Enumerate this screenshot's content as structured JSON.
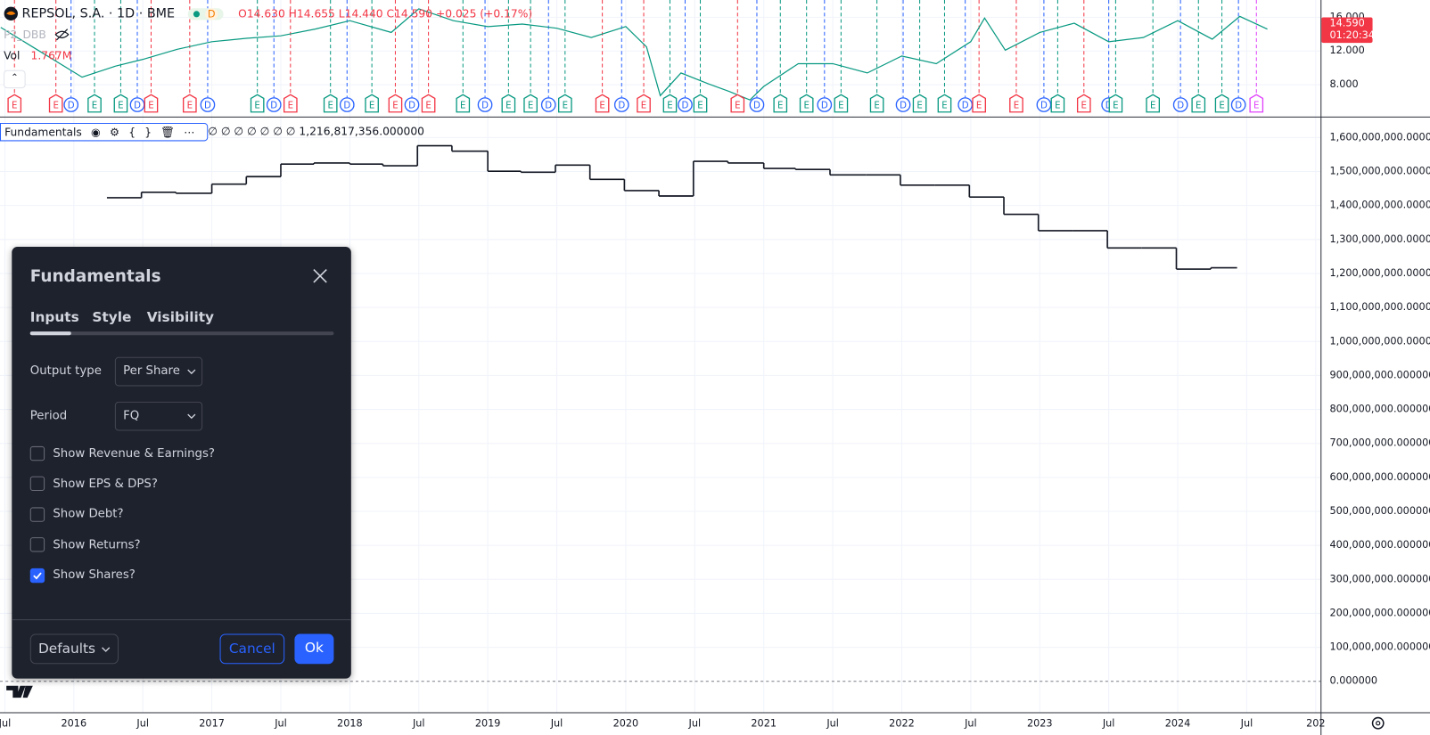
{
  "header": {
    "symbol": "REPSOL, S.A. · 1D · BME",
    "badge": "D",
    "open": "O14.630",
    "high": "H14.655",
    "low": "L14.440",
    "close": "C14.590",
    "change": "+0.025 (+0.17%)",
    "indicator": "P2_DBB",
    "volume_label": "Vol",
    "volume_value": "1.767M"
  },
  "indicator_legend": {
    "name": "Fundamentals",
    "values_text": "∅ ∅ ∅ ∅ ∅ ∅ ∅ 1,216,817,356.000000"
  },
  "chart_data": [
    {
      "type": "line",
      "color": "#089981",
      "x": [
        2015.47,
        2015.7,
        2016.06,
        2016.3,
        2016.5,
        2016.75,
        2017,
        2017.25,
        2017.5,
        2017.75,
        2018,
        2018.3,
        2018.5,
        2018.75,
        2019,
        2019.25,
        2019.5,
        2019.75,
        2020,
        2020.15,
        2020.25,
        2020.4,
        2020.6,
        2020.75,
        2020.9,
        2021,
        2021.25,
        2021.5,
        2021.75,
        2022,
        2022.25,
        2022.5,
        2022.6,
        2022.75,
        2023,
        2023.25,
        2023.5,
        2023.75,
        2024,
        2024.25,
        2024.45,
        2024.65
      ],
      "values": [
        14.8,
        12.5,
        8.9,
        10.2,
        11,
        12.2,
        13.1,
        13.5,
        13.8,
        14.6,
        15.6,
        14.2,
        17,
        15.6,
        14.9,
        15.2,
        14.7,
        13.6,
        14.9,
        12.5,
        6.7,
        9.4,
        8.1,
        7.2,
        6.2,
        7.8,
        10.5,
        10.5,
        9.4,
        11.4,
        10.5,
        13.1,
        15.9,
        12.1,
        14.2,
        15.3,
        13.1,
        13.6,
        15.6,
        13.4,
        16.1,
        14.59
      ],
      "xlim": [
        2015.465,
        2025.035
      ],
      "ylim": [
        4.22,
        18.05
      ],
      "yticks": [
        {
          "value": 8,
          "label": "8.000"
        },
        {
          "value": 12,
          "label": "12.000"
        },
        {
          "value": 16,
          "label": "16.000"
        }
      ],
      "price_tag": {
        "value": 14.59,
        "label": "14.590"
      },
      "countdown": "01:20:34",
      "tag_color": "#f23645",
      "events": {
        "x": [
          2015.57,
          2015.87,
          2015.98,
          2016.15,
          2016.34,
          2016.46,
          2016.56,
          2016.84,
          2016.97,
          2017.33,
          2017.45,
          2017.57,
          2017.86,
          2017.98,
          2018.16,
          2018.33,
          2018.45,
          2018.57,
          2018.82,
          2018.98,
          2019.15,
          2019.31,
          2019.44,
          2019.56,
          2019.83,
          2019.97,
          2020.13,
          2020.32,
          2020.43,
          2020.54,
          2020.81,
          2020.95,
          2021.12,
          2021.31,
          2021.44,
          2021.56,
          2021.82,
          2022.01,
          2022.13,
          2022.31,
          2022.46,
          2022.56,
          2022.83,
          2023.03,
          2023.13,
          2023.32,
          2023.5,
          2023.55,
          2023.82,
          2024.02,
          2024.15,
          2024.32,
          2024.44,
          2024.57
        ],
        "labels": [
          "E",
          "E",
          "D",
          "E",
          "E",
          "D",
          "E",
          "E",
          "D",
          "E",
          "D",
          "E",
          "E",
          "D",
          "E",
          "E",
          "D",
          "E",
          "E",
          "D",
          "E",
          "E",
          "D",
          "E",
          "E",
          "D",
          "E",
          "E",
          "D",
          "E",
          "E",
          "D",
          "E",
          "E",
          "D",
          "E",
          "E",
          "D",
          "E",
          "E",
          "D",
          "E",
          "E",
          "D",
          "E",
          "E",
          "D",
          "E",
          "E",
          "D",
          "E",
          "E",
          "D",
          "E"
        ],
        "colors": [
          "#f23645",
          "#f23645",
          "#2962ff",
          "#089981",
          "#089981",
          "#2962ff",
          "#f23645",
          "#f23645",
          "#2962ff",
          "#089981",
          "#2962ff",
          "#f23645",
          "#089981",
          "#2962ff",
          "#089981",
          "#f23645",
          "#2962ff",
          "#f23645",
          "#089981",
          "#2962ff",
          "#089981",
          "#089981",
          "#2962ff",
          "#089981",
          "#f23645",
          "#2962ff",
          "#f23645",
          "#089981",
          "#2962ff",
          "#089981",
          "#f23645",
          "#2962ff",
          "#089981",
          "#089981",
          "#2962ff",
          "#089981",
          "#089981",
          "#2962ff",
          "#089981",
          "#089981",
          "#2962ff",
          "#f23645",
          "#f23645",
          "#2962ff",
          "#089981",
          "#f23645",
          "#2962ff",
          "#089981",
          "#089981",
          "#2962ff",
          "#089981",
          "#089981",
          "#2962ff",
          "#e040fb"
        ]
      }
    },
    {
      "type": "step",
      "color": "#131722",
      "grid": true,
      "x": [
        2016.24,
        2016.49,
        2016.74,
        2017.0,
        2017.25,
        2017.5,
        2017.74,
        2018.0,
        2018.24,
        2018.49,
        2018.74,
        2019.0,
        2019.24,
        2019.49,
        2019.74,
        2019.99,
        2020.24,
        2020.49,
        2020.74,
        2021.0,
        2021.23,
        2021.48,
        2021.74,
        2021.99,
        2022.24,
        2022.49,
        2022.74,
        2022.99,
        2023.24,
        2023.49,
        2023.74,
        2023.99,
        2024.24
      ],
      "values": [
        1423000000,
        1439000000,
        1436000000,
        1463000000,
        1485000000,
        1522000000,
        1525000000,
        1522000000,
        1517000000,
        1576000000,
        1560000000,
        1501000000,
        1498000000,
        1519000000,
        1477000000,
        1444000000,
        1428000000,
        1530000000,
        1525000000,
        1509000000,
        1506000000,
        1490000000,
        1490000000,
        1460000000,
        1460000000,
        1425000000,
        1374000000,
        1326000000,
        1326000000,
        1275000000,
        1275000000,
        1213000000,
        1216817356
      ],
      "xlim": [
        2015.465,
        2025.035
      ],
      "ylim": [
        -91000000,
        1659000000
      ],
      "xticks": [
        {
          "value": 2015.5,
          "label": "Jul"
        },
        2016,
        {
          "value": 2016.5,
          "label": "Jul"
        },
        2017,
        {
          "value": 2017.5,
          "label": "Jul"
        },
        2018,
        {
          "value": 2018.5,
          "label": "Jul"
        },
        2019,
        {
          "value": 2019.5,
          "label": "Jul"
        },
        2020,
        {
          "value": 2020.5,
          "label": "Jul"
        },
        2021,
        {
          "value": 2021.5,
          "label": "Jul"
        },
        2022,
        {
          "value": 2022.5,
          "label": "Jul"
        },
        2023,
        {
          "value": 2023.5,
          "label": "Jul"
        },
        2024,
        {
          "value": 2024.5,
          "label": "Jul"
        },
        {
          "value": 2025,
          "label": "202"
        }
      ],
      "yticks": [
        {
          "value": 0,
          "label": "0.000000"
        },
        {
          "value": 100000000,
          "label": "100,000,000.000000"
        },
        {
          "value": 200000000,
          "label": "200,000,000.000000"
        },
        {
          "value": 300000000,
          "label": "300,000,000.000000"
        },
        {
          "value": 400000000,
          "label": "400,000,000.000000"
        },
        {
          "value": 500000000,
          "label": "500,000,000.000000"
        },
        {
          "value": 600000000,
          "label": "600,000,000.000000"
        },
        {
          "value": 700000000,
          "label": "700,000,000.000000"
        },
        {
          "value": 800000000,
          "label": "800,000,000.000000"
        },
        {
          "value": 900000000,
          "label": "900,000,000.000000"
        },
        {
          "value": 1000000000,
          "label": "1,000,000,000.000000"
        },
        {
          "value": 1100000000,
          "label": "1,100,000,000.000000"
        },
        {
          "value": 1200000000,
          "label": "1,200,000,000.000000"
        },
        {
          "value": 1300000000,
          "label": "1,300,000,000.000000"
        },
        {
          "value": 1400000000,
          "label": "1,400,000,000.000000"
        },
        {
          "value": 1500000000,
          "label": "1,500,000,000.000000"
        },
        {
          "value": 1600000000,
          "label": "1,600,000,000.000000"
        }
      ]
    }
  ],
  "dialog": {
    "title": "Fundamentals",
    "tabs": [
      "Inputs",
      "Style",
      "Visibility"
    ],
    "fields": [
      {
        "label": "Output type",
        "value": "Per Share"
      },
      {
        "label": "Period",
        "value": "FQ"
      }
    ],
    "checkboxes": [
      {
        "label": "Show Revenue & Earnings?",
        "checked": false
      },
      {
        "label": "Show EPS & DPS?",
        "checked": false
      },
      {
        "label": "Show Debt?",
        "checked": false
      },
      {
        "label": "Show Returns?",
        "checked": false
      },
      {
        "label": "Show Shares?",
        "checked": true
      }
    ],
    "defaults": "Defaults",
    "cancel": "Cancel",
    "ok": "Ok"
  }
}
